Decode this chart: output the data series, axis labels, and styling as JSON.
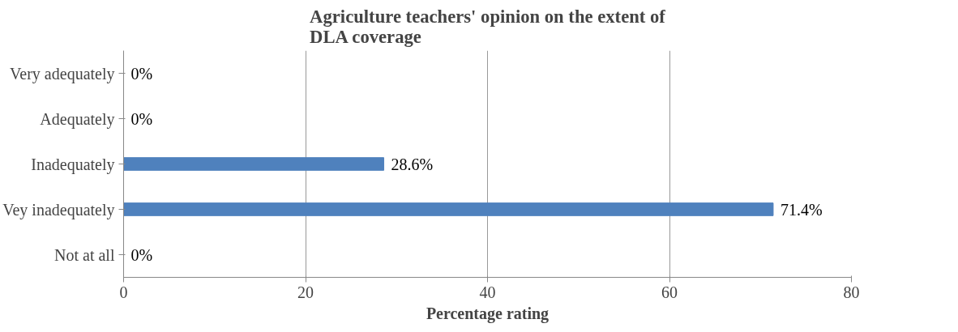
{
  "chart_data": {
    "type": "bar",
    "orientation": "horizontal",
    "title": "Agriculture teachers' opinion on the extent of DLA coverage",
    "xlabel": "Percentage rating",
    "categories": [
      "Very adequately",
      "Adequately",
      "Inadequately",
      "Vey inadequately",
      "Not at all"
    ],
    "values": [
      0,
      0,
      28.6,
      71.4,
      0
    ],
    "value_labels": [
      "0%",
      "0%",
      "28.6%",
      "71.4%",
      "0%"
    ],
    "color": "#4f81bd",
    "xlim": [
      0,
      80
    ],
    "xticks": [
      0,
      20,
      40,
      60,
      80
    ],
    "grid": "x"
  }
}
